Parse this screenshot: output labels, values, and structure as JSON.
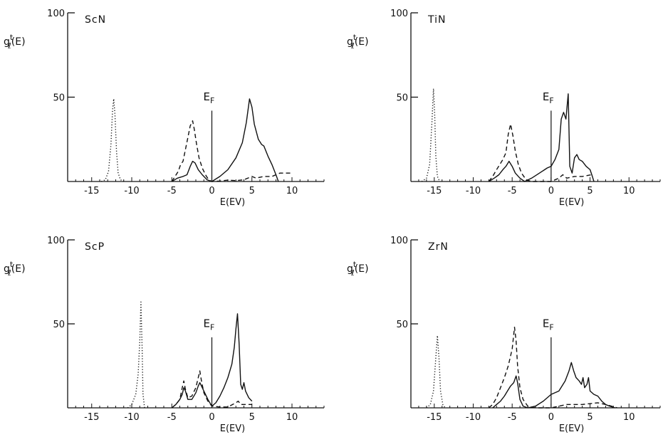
{
  "figure": {
    "ylabel_main": "g",
    "ylabel_sup": "t",
    "ylabel_sub": "ℓ",
    "ylabel_tail": "(E)",
    "xlabel": "E(EV)",
    "ef_main": "E",
    "ef_sub": "F"
  },
  "chart_data": [
    {
      "type": "line",
      "title": "ScN",
      "xlabel": "E(EV)",
      "ylabel": "g_ℓ^t(E)",
      "xlim": [
        -18,
        14
      ],
      "ylim": [
        0,
        100
      ],
      "xticks": [
        -15,
        -10,
        -5,
        0,
        5,
        10
      ],
      "xticklabels": [
        "-15",
        "-10",
        "-5",
        "0",
        "5",
        "10"
      ],
      "yticks": [
        50,
        100
      ],
      "yticklabels": [
        "50",
        "100"
      ],
      "fermi_level": 0,
      "fermi_label": "E_F",
      "legend": "none",
      "grid": false,
      "series": [
        {
          "style": "dotted",
          "points": [
            [
              -13.8,
              0
            ],
            [
              -13.3,
              1
            ],
            [
              -12.9,
              6
            ],
            [
              -12.6,
              22
            ],
            [
              -12.4,
              42
            ],
            [
              -12.25,
              49
            ],
            [
              -12.1,
              40
            ],
            [
              -11.9,
              18
            ],
            [
              -11.7,
              5
            ],
            [
              -11.4,
              1
            ],
            [
              -11.0,
              0
            ]
          ]
        },
        {
          "style": "dashed",
          "points": [
            [
              -5,
              0
            ],
            [
              -4.6,
              3
            ],
            [
              -4.2,
              6
            ],
            [
              -3.9,
              10
            ],
            [
              -3.6,
              12
            ],
            [
              -3.3,
              19
            ],
            [
              -3.0,
              26
            ],
            [
              -2.7,
              33
            ],
            [
              -2.4,
              36
            ],
            [
              -2.2,
              31
            ],
            [
              -1.9,
              22
            ],
            [
              -1.6,
              14
            ],
            [
              -1.2,
              8
            ],
            [
              -0.8,
              4
            ],
            [
              -0.4,
              1
            ],
            [
              0,
              0
            ],
            [
              1,
              0.3
            ],
            [
              2,
              0.8
            ],
            [
              3,
              0.5
            ],
            [
              4,
              1
            ],
            [
              5,
              3
            ],
            [
              5.5,
              2
            ],
            [
              6.5,
              3
            ],
            [
              7.5,
              3
            ],
            [
              8.5,
              5
            ],
            [
              10,
              5
            ]
          ]
        },
        {
          "style": "solid",
          "points": [
            [
              -5,
              0
            ],
            [
              -4.3,
              2
            ],
            [
              -3.6,
              3
            ],
            [
              -3.1,
              4
            ],
            [
              -2.7,
              9
            ],
            [
              -2.4,
              12
            ],
            [
              -2.1,
              11
            ],
            [
              -1.7,
              7
            ],
            [
              -1.2,
              4
            ],
            [
              -0.6,
              1
            ],
            [
              0,
              0
            ],
            [
              1,
              3
            ],
            [
              2,
              7
            ],
            [
              3,
              14
            ],
            [
              3.8,
              23
            ],
            [
              4.3,
              35
            ],
            [
              4.7,
              49
            ],
            [
              5.0,
              44
            ],
            [
              5.3,
              34
            ],
            [
              5.8,
              25
            ],
            [
              6.2,
              22
            ],
            [
              6.5,
              21
            ],
            [
              7.0,
              15
            ],
            [
              7.5,
              10
            ],
            [
              8.0,
              4
            ],
            [
              8.3,
              0
            ]
          ]
        }
      ]
    },
    {
      "type": "line",
      "title": "TiN",
      "xlabel": "E(EV)",
      "ylabel": "g_ℓ^t(E)",
      "xlim": [
        -18,
        14
      ],
      "ylim": [
        0,
        100
      ],
      "xticks": [
        -15,
        -10,
        -5,
        0,
        5,
        10
      ],
      "xticklabels": [
        "-15",
        "-10",
        "-5",
        "0",
        "5",
        "10"
      ],
      "yticks": [
        50,
        100
      ],
      "yticklabels": [
        "50",
        "100"
      ],
      "fermi_level": 0,
      "fermi_label": "E_F",
      "legend": "none",
      "grid": false,
      "series": [
        {
          "style": "dotted",
          "points": [
            [
              -16.6,
              0
            ],
            [
              -16.0,
              2
            ],
            [
              -15.6,
              10
            ],
            [
              -15.3,
              35
            ],
            [
              -15.1,
              55
            ],
            [
              -14.95,
              40
            ],
            [
              -14.8,
              15
            ],
            [
              -14.6,
              3
            ],
            [
              -14.3,
              0
            ]
          ]
        },
        {
          "style": "dashed",
          "points": [
            [
              -8,
              0
            ],
            [
              -7.5,
              3
            ],
            [
              -7.0,
              7
            ],
            [
              -6.6,
              10
            ],
            [
              -6.2,
              13
            ],
            [
              -5.8,
              17
            ],
            [
              -5.5,
              28
            ],
            [
              -5.2,
              34
            ],
            [
              -4.9,
              27
            ],
            [
              -4.6,
              18
            ],
            [
              -4.2,
              10
            ],
            [
              -3.8,
              5
            ],
            [
              -3.2,
              1
            ],
            [
              -2.5,
              0
            ],
            [
              0,
              0
            ],
            [
              1,
              2
            ],
            [
              1.5,
              4
            ],
            [
              2,
              2
            ],
            [
              3,
              3
            ],
            [
              4,
              3
            ],
            [
              5.2,
              4
            ]
          ]
        },
        {
          "style": "solid",
          "points": [
            [
              -8,
              0
            ],
            [
              -7.3,
              2
            ],
            [
              -6.7,
              4
            ],
            [
              -6.2,
              7
            ],
            [
              -5.8,
              9
            ],
            [
              -5.4,
              12
            ],
            [
              -5.0,
              9
            ],
            [
              -4.6,
              5
            ],
            [
              -4.0,
              2
            ],
            [
              -3.4,
              0
            ],
            [
              -2.5,
              2
            ],
            [
              -1.5,
              5
            ],
            [
              -0.5,
              8
            ],
            [
              0,
              9
            ],
            [
              0.5,
              13
            ],
            [
              1.0,
              19
            ],
            [
              1.3,
              37
            ],
            [
              1.6,
              41
            ],
            [
              1.9,
              37
            ],
            [
              2.2,
              52
            ],
            [
              2.4,
              9
            ],
            [
              2.7,
              5
            ],
            [
              3.0,
              14
            ],
            [
              3.3,
              16
            ],
            [
              3.6,
              13
            ],
            [
              4.0,
              12
            ],
            [
              4.5,
              9
            ],
            [
              5.0,
              7
            ],
            [
              5.3,
              3
            ],
            [
              5.5,
              0
            ]
          ]
        }
      ]
    },
    {
      "type": "line",
      "title": "ScP",
      "xlabel": "E(EV)",
      "ylabel": "g_ℓ^t(E)",
      "xlim": [
        -18,
        14
      ],
      "ylim": [
        0,
        100
      ],
      "xticks": [
        -15,
        -10,
        -5,
        0,
        5,
        10
      ],
      "xticklabels": [
        "-15",
        "-10",
        "-5",
        "0",
        "5",
        "10"
      ],
      "yticks": [
        50,
        100
      ],
      "yticklabels": [
        "50",
        "100"
      ],
      "fermi_level": 0,
      "fermi_label": "E_F",
      "legend": "none",
      "grid": false,
      "series": [
        {
          "style": "dotted",
          "points": [
            [
              -10.5,
              0
            ],
            [
              -10.0,
              2
            ],
            [
              -9.5,
              8
            ],
            [
              -9.2,
              20
            ],
            [
              -9.0,
              40
            ],
            [
              -8.85,
              63
            ],
            [
              -8.7,
              35
            ],
            [
              -8.6,
              8
            ],
            [
              -8.4,
              0
            ]
          ]
        },
        {
          "style": "dashed",
          "points": [
            [
              -5,
              0
            ],
            [
              -4.5,
              2
            ],
            [
              -4.0,
              5
            ],
            [
              -3.7,
              12
            ],
            [
              -3.5,
              16
            ],
            [
              -3.3,
              11
            ],
            [
              -3.0,
              6
            ],
            [
              -2.5,
              7
            ],
            [
              -2.0,
              12
            ],
            [
              -1.7,
              18
            ],
            [
              -1.5,
              22
            ],
            [
              -1.3,
              16
            ],
            [
              -1.0,
              9
            ],
            [
              -0.5,
              4
            ],
            [
              0,
              1
            ],
            [
              1,
              0.5
            ],
            [
              2,
              0.5
            ],
            [
              3,
              3
            ],
            [
              3.3,
              4
            ],
            [
              3.6,
              2
            ],
            [
              4,
              2
            ],
            [
              5,
              2
            ]
          ]
        },
        {
          "style": "solid",
          "points": [
            [
              -5,
              0
            ],
            [
              -4.5,
              2
            ],
            [
              -4.0,
              5
            ],
            [
              -3.7,
              8
            ],
            [
              -3.5,
              12
            ],
            [
              -3.3,
              10
            ],
            [
              -3.0,
              5
            ],
            [
              -2.5,
              5
            ],
            [
              -2.0,
              9
            ],
            [
              -1.7,
              13
            ],
            [
              -1.5,
              15
            ],
            [
              -1.3,
              13
            ],
            [
              -1.0,
              10
            ],
            [
              -0.5,
              5
            ],
            [
              0,
              1
            ],
            [
              0.5,
              3
            ],
            [
              1,
              7
            ],
            [
              1.5,
              12
            ],
            [
              2,
              18
            ],
            [
              2.5,
              26
            ],
            [
              2.8,
              36
            ],
            [
              3.0,
              47
            ],
            [
              3.2,
              56
            ],
            [
              3.4,
              38
            ],
            [
              3.6,
              14
            ],
            [
              3.8,
              11
            ],
            [
              4.0,
              15
            ],
            [
              4.2,
              10
            ],
            [
              4.6,
              6
            ],
            [
              5.0,
              4
            ]
          ]
        }
      ]
    },
    {
      "type": "line",
      "title": "ZrN",
      "xlabel": "E(EV)",
      "ylabel": "g_ℓ^t(E)",
      "xlim": [
        -18,
        14
      ],
      "ylim": [
        0,
        100
      ],
      "xticks": [
        -15,
        -10,
        -5,
        0,
        5,
        10
      ],
      "xticklabels": [
        "-15",
        "-10",
        "-5",
        "0",
        "5",
        "10"
      ],
      "yticks": [
        50,
        100
      ],
      "yticklabels": [
        "50",
        "100"
      ],
      "fermi_level": 0,
      "fermi_label": "E_F",
      "legend": "none",
      "grid": false,
      "series": [
        {
          "style": "dotted",
          "points": [
            [
              -16.0,
              0
            ],
            [
              -15.5,
              2
            ],
            [
              -15.1,
              10
            ],
            [
              -14.8,
              30
            ],
            [
              -14.6,
              43
            ],
            [
              -14.4,
              30
            ],
            [
              -14.2,
              10
            ],
            [
              -13.9,
              2
            ],
            [
              -13.6,
              0
            ]
          ]
        },
        {
          "style": "dashed",
          "points": [
            [
              -8,
              0
            ],
            [
              -7.5,
              2
            ],
            [
              -7.0,
              6
            ],
            [
              -6.5,
              12
            ],
            [
              -6.0,
              18
            ],
            [
              -5.5,
              25
            ],
            [
              -5.0,
              35
            ],
            [
              -4.7,
              48
            ],
            [
              -4.5,
              40
            ],
            [
              -4.3,
              25
            ],
            [
              -4.0,
              12
            ],
            [
              -3.6,
              5
            ],
            [
              -3.0,
              1
            ],
            [
              -2,
              0
            ],
            [
              0,
              0
            ],
            [
              2,
              2
            ],
            [
              4,
              2
            ],
            [
              6,
              3
            ],
            [
              7,
              2
            ],
            [
              8.5,
              0
            ]
          ]
        },
        {
          "style": "solid",
          "points": [
            [
              -7.5,
              0
            ],
            [
              -7.0,
              2
            ],
            [
              -6.5,
              4
            ],
            [
              -6.0,
              7
            ],
            [
              -5.6,
              10
            ],
            [
              -5.2,
              13
            ],
            [
              -4.8,
              15
            ],
            [
              -4.5,
              19
            ],
            [
              -4.3,
              15
            ],
            [
              -4.0,
              5
            ],
            [
              -3.6,
              1
            ],
            [
              -3.0,
              0
            ],
            [
              -2,
              1
            ],
            [
              -1,
              4
            ],
            [
              0,
              8
            ],
            [
              1,
              10
            ],
            [
              1.8,
              16
            ],
            [
              2.3,
              22
            ],
            [
              2.6,
              27
            ],
            [
              2.9,
              22
            ],
            [
              3.2,
              18
            ],
            [
              3.6,
              16
            ],
            [
              3.9,
              14
            ],
            [
              4.1,
              18
            ],
            [
              4.3,
              12
            ],
            [
              4.6,
              14
            ],
            [
              4.8,
              18
            ],
            [
              5.0,
              10
            ],
            [
              5.5,
              8
            ],
            [
              6.0,
              7
            ],
            [
              6.5,
              4
            ],
            [
              7.0,
              2
            ],
            [
              7.5,
              1
            ],
            [
              8.2,
              0
            ]
          ]
        }
      ]
    }
  ]
}
